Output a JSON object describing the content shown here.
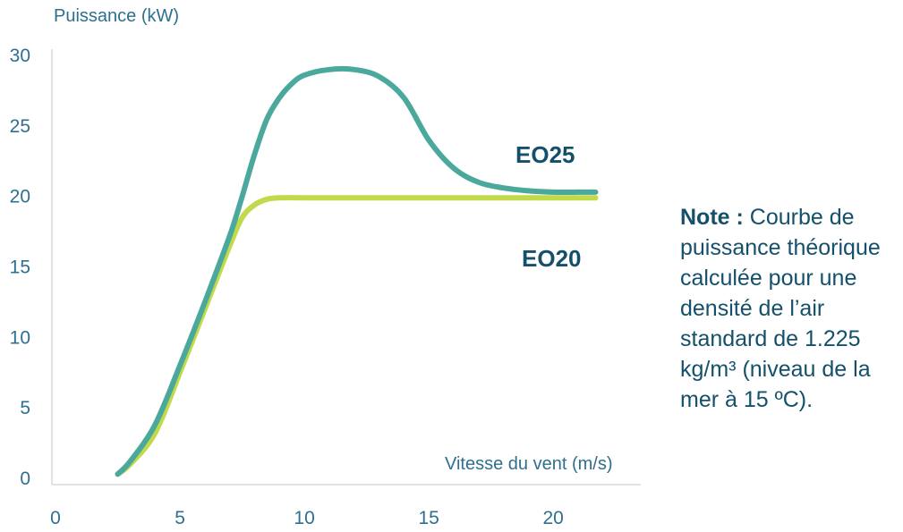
{
  "chart_data": {
    "type": "line",
    "title": "",
    "ylabel": "Puissance (kW)",
    "xlabel": "Vitesse du vent (m/s)",
    "xlim": [
      0,
      23
    ],
    "ylim": [
      0,
      30
    ],
    "x_ticks": [
      "0",
      "5",
      "10",
      "15",
      "20"
    ],
    "y_ticks": [
      "0",
      "5",
      "10",
      "15",
      "20",
      "25",
      "30"
    ],
    "grid": false,
    "series": [
      {
        "name": "EO25",
        "color": "#4aa89c",
        "x": [
          2.5,
          3,
          4,
          5,
          6,
          7,
          7.5,
          8,
          8.5,
          9,
          9.5,
          10,
          11,
          12,
          13,
          14,
          15,
          16,
          17,
          18,
          19,
          20,
          21,
          21.7
        ],
        "y": [
          0.3,
          1.2,
          3.8,
          8.0,
          12.5,
          17.2,
          20.0,
          23.0,
          25.5,
          27.0,
          28.0,
          28.6,
          29.0,
          29.0,
          28.5,
          27.0,
          24.0,
          22.0,
          21.0,
          20.6,
          20.4,
          20.3,
          20.3,
          20.3
        ]
      },
      {
        "name": "EO20",
        "color": "#c2d94a",
        "x": [
          2.5,
          3,
          4,
          5,
          6,
          7,
          7.5,
          8,
          8.5,
          9,
          10,
          12,
          14,
          16,
          18,
          20,
          21.7
        ],
        "y": [
          0.3,
          1.0,
          3.2,
          7.5,
          12.0,
          16.5,
          18.5,
          19.4,
          19.8,
          19.9,
          19.9,
          19.9,
          19.9,
          19.9,
          19.9,
          19.9,
          19.9
        ]
      }
    ]
  },
  "note": {
    "bold": "Note :",
    "text": "Courbe de puissance théorique calculée pour une densité de l’air standard de 1.225 kg/m³ (niveau de la mer à 15 ºC)."
  }
}
